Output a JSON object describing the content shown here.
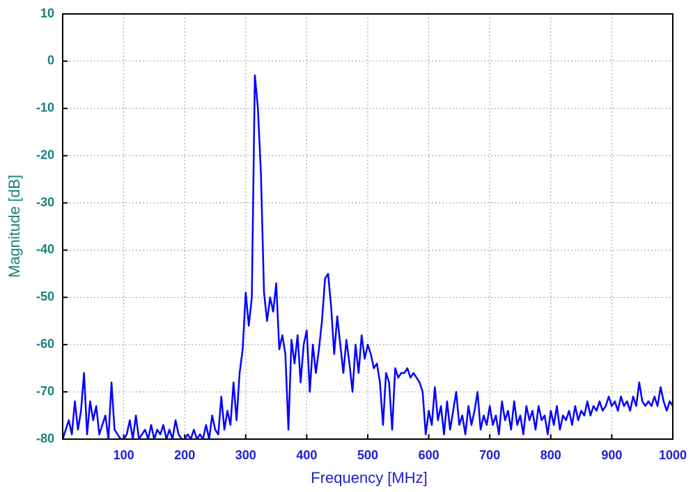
{
  "chart_data": {
    "type": "line",
    "xlabel": "Frequency [MHz]",
    "ylabel": "Magnitude [dB]",
    "xlim": [
      0,
      1000
    ],
    "ylim": [
      -80,
      10
    ],
    "xticks": [
      100,
      200,
      300,
      400,
      500,
      600,
      700,
      800,
      900,
      1000
    ],
    "yticks": [
      -80,
      -70,
      -60,
      -50,
      -40,
      -30,
      -20,
      -10,
      0,
      10
    ],
    "grid": true,
    "x": [
      0,
      5,
      10,
      15,
      20,
      25,
      30,
      35,
      40,
      45,
      50,
      55,
      60,
      65,
      70,
      75,
      80,
      85,
      90,
      95,
      100,
      105,
      110,
      115,
      120,
      125,
      130,
      135,
      140,
      145,
      150,
      155,
      160,
      165,
      170,
      175,
      180,
      185,
      190,
      195,
      200,
      205,
      210,
      215,
      220,
      225,
      230,
      235,
      240,
      245,
      250,
      255,
      260,
      265,
      270,
      275,
      280,
      285,
      290,
      295,
      300,
      305,
      310,
      315,
      320,
      325,
      330,
      335,
      340,
      345,
      350,
      355,
      360,
      365,
      370,
      375,
      380,
      385,
      390,
      395,
      400,
      405,
      410,
      415,
      420,
      425,
      430,
      435,
      440,
      445,
      450,
      455,
      460,
      465,
      470,
      475,
      480,
      485,
      490,
      495,
      500,
      505,
      510,
      515,
      520,
      525,
      530,
      535,
      540,
      545,
      550,
      555,
      560,
      565,
      570,
      575,
      580,
      585,
      590,
      595,
      600,
      605,
      610,
      615,
      620,
      625,
      630,
      635,
      640,
      645,
      650,
      655,
      660,
      665,
      670,
      675,
      680,
      685,
      690,
      695,
      700,
      705,
      710,
      715,
      720,
      725,
      730,
      735,
      740,
      745,
      750,
      755,
      760,
      765,
      770,
      775,
      780,
      785,
      790,
      795,
      800,
      805,
      810,
      815,
      820,
      825,
      830,
      835,
      840,
      845,
      850,
      855,
      860,
      865,
      870,
      875,
      880,
      885,
      890,
      895,
      900,
      905,
      910,
      915,
      920,
      925,
      930,
      935,
      940,
      945,
      950,
      955,
      960,
      965,
      970,
      975,
      980,
      985,
      990,
      995,
      1000
    ],
    "series": [
      {
        "color": "#0000ff",
        "values": [
          -80,
          -78,
          -76,
          -79,
          -72,
          -78,
          -74,
          -66,
          -79,
          -72,
          -76,
          -73,
          -79,
          -77,
          -75,
          -80,
          -68,
          -78,
          -79,
          -80,
          -80,
          -79,
          -76,
          -80,
          -75,
          -80,
          -79,
          -78,
          -80,
          -77,
          -80,
          -78,
          -79,
          -77,
          -80,
          -78,
          -80,
          -76,
          -79,
          -80,
          -80,
          -79,
          -80,
          -78,
          -80,
          -79,
          -80,
          -77,
          -80,
          -75,
          -78,
          -79,
          -71,
          -78,
          -74,
          -77,
          -68,
          -76,
          -66,
          -61,
          -49,
          -56,
          -50,
          -3,
          -10,
          -24,
          -49,
          -55,
          -50,
          -53,
          -47,
          -61,
          -58,
          -62,
          -78,
          -59,
          -64,
          -58,
          -68,
          -60,
          -57,
          -70,
          -60,
          -66,
          -61,
          -55,
          -46,
          -45,
          -52,
          -62,
          -54,
          -60,
          -66,
          -59,
          -64,
          -70,
          -60,
          -66,
          -58,
          -63,
          -60,
          -62,
          -65,
          -64,
          -68,
          -77,
          -66,
          -68,
          -78,
          -65,
          -67,
          -66,
          -66,
          -65,
          -67,
          -66,
          -67,
          -68,
          -70,
          -79,
          -74,
          -77,
          -69,
          -76,
          -73,
          -79,
          -72,
          -78,
          -74,
          -70,
          -77,
          -75,
          -79,
          -73,
          -77,
          -74,
          -70,
          -78,
          -75,
          -77,
          -73,
          -77,
          -75,
          -79,
          -72,
          -76,
          -74,
          -78,
          -72,
          -77,
          -75,
          -79,
          -73,
          -76,
          -74,
          -78,
          -73,
          -76,
          -75,
          -79,
          -74,
          -77,
          -73,
          -78,
          -75,
          -76,
          -74,
          -77,
          -73,
          -76,
          -74,
          -75,
          -72,
          -75,
          -73,
          -74,
          -72,
          -74,
          -73,
          -71,
          -73,
          -72,
          -74,
          -71,
          -73,
          -72,
          -74,
          -71,
          -73,
          -68,
          -72,
          -73,
          -72,
          -73,
          -71,
          -73,
          -69,
          -72,
          -74,
          -72,
          -73
        ]
      }
    ]
  }
}
